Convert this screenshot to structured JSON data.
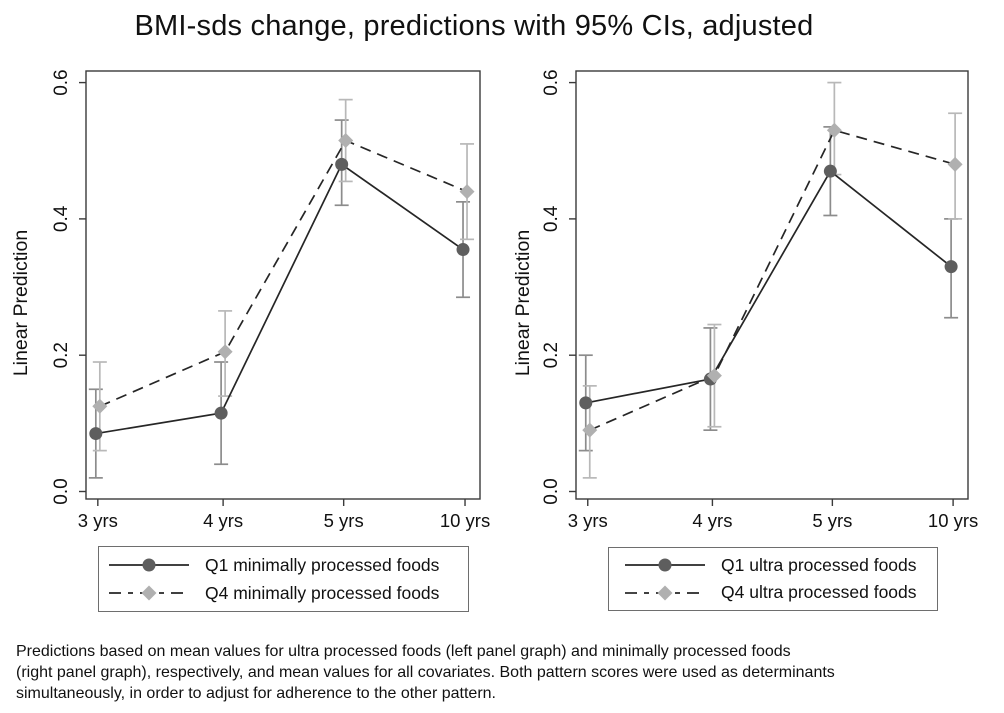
{
  "title": "BMI-sds change, predictions with 95% CIs, adjusted",
  "footnote_lines": [
    "Predictions based on mean values for ultra processed foods (left panel graph) and minimally processed foods",
    "(right panel graph), respectively, and mean values for all covariates. Both pattern scores were used as determinants",
    "simultaneously, in order to adjust for adherence to the other pattern."
  ],
  "colors": {
    "axis": "#3a3a3a",
    "text": "#111111",
    "background": "#ffffff",
    "q1_marker": "#5e5e5e",
    "q4_marker": "#b0b0b0",
    "q1_line": "#262626",
    "q4_line": "#262626",
    "q1_error": "#8c8c8c",
    "q4_error": "#b8b8b8"
  },
  "chart_data": {
    "type": "line",
    "title": "BMI-sds change, predictions with 95% CIs, adjusted",
    "ylabel": "Linear Prediction",
    "xlabel": "",
    "categories": [
      "3 yrs",
      "4 yrs",
      "5 yrs",
      "10 yrs"
    ],
    "yticks": [
      "0.0",
      "0.2",
      "0.4",
      "0.6"
    ],
    "ytick_values": [
      0.0,
      0.2,
      0.4,
      0.6
    ],
    "ylim": [
      -0.011,
      0.617
    ],
    "grid": false,
    "error_bars": "95% CI",
    "legend_position": "bottom-box-per-panel",
    "panels": [
      {
        "name": "left",
        "series": [
          {
            "name": "Q1 minimally processed foods",
            "marker": "circle",
            "line_style": "solid",
            "marker_color": "#5e5e5e",
            "line_color": "#262626",
            "error_color": "#8c8c8c",
            "values": [
              0.085,
              0.115,
              0.48,
              0.355
            ],
            "ci_low": [
              0.02,
              0.04,
              0.42,
              0.285
            ],
            "ci_high": [
              0.15,
              0.19,
              0.545,
              0.425
            ]
          },
          {
            "name": "Q4 minimally processed foods",
            "marker": "diamond",
            "line_style": "dashed",
            "marker_color": "#b0b0b0",
            "line_color": "#262626",
            "error_color": "#b8b8b8",
            "values": [
              0.125,
              0.205,
              0.515,
              0.44
            ],
            "ci_low": [
              0.06,
              0.14,
              0.455,
              0.37
            ],
            "ci_high": [
              0.19,
              0.265,
              0.575,
              0.51
            ]
          }
        ]
      },
      {
        "name": "right",
        "series": [
          {
            "name": "Q1 ultra processed foods",
            "marker": "circle",
            "line_style": "solid",
            "marker_color": "#5e5e5e",
            "line_color": "#262626",
            "error_color": "#8c8c8c",
            "values": [
              0.13,
              0.165,
              0.47,
              0.33
            ],
            "ci_low": [
              0.06,
              0.09,
              0.405,
              0.255
            ],
            "ci_high": [
              0.2,
              0.24,
              0.535,
              0.4
            ]
          },
          {
            "name": "Q4 ultra processed foods",
            "marker": "diamond",
            "line_style": "dashed",
            "marker_color": "#b0b0b0",
            "line_color": "#262626",
            "error_color": "#b8b8b8",
            "values": [
              0.09,
              0.17,
              0.53,
              0.48
            ],
            "ci_low": [
              0.02,
              0.095,
              0.465,
              0.4
            ],
            "ci_high": [
              0.155,
              0.245,
              0.6,
              0.555
            ]
          }
        ]
      }
    ]
  }
}
